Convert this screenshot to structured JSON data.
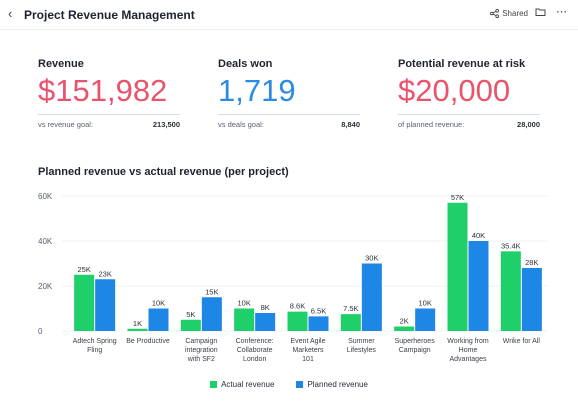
{
  "header": {
    "title": "Project Revenue Management",
    "back_icon": "chevron-left-icon",
    "shared_label": "Shared",
    "share_icon": "share-icon",
    "folder_icon": "folder-icon",
    "more_icon": "more-icon"
  },
  "kpis": [
    {
      "title": "Revenue",
      "value": "$151,982",
      "foot_label": "vs revenue goal:",
      "foot_value": "213,500",
      "color": "#e8546b"
    },
    {
      "title": "Deals won",
      "value": "1,719",
      "foot_label": "vs deals goal:",
      "foot_value": "8,840",
      "color": "#2a8be3"
    },
    {
      "title": "Potential revenue at risk",
      "value": "$20,000",
      "foot_label": "of planned revenue:",
      "foot_value": "28,000",
      "color": "#e8546b"
    }
  ],
  "chart_title": "Planned revenue vs actual revenue (per project)",
  "chart_data": {
    "type": "bar",
    "title": "Planned revenue vs actual revenue (per project)",
    "categories": [
      [
        "Adtech Spring",
        "Fling"
      ],
      [
        "Be Productive"
      ],
      [
        "Campaign",
        "integration",
        "with SF2"
      ],
      [
        "Conference:",
        "Collaborate",
        "London"
      ],
      [
        "Event Agile",
        "Marketers",
        "101"
      ],
      [
        "Summer",
        "Lifestyles"
      ],
      [
        "Superheroes",
        "Campaign"
      ],
      [
        "Working from",
        "Home",
        "Advantages"
      ],
      [
        "Wrike for All"
      ]
    ],
    "series": [
      {
        "name": "Actual revenue",
        "color": "#1ecf6a",
        "values": [
          25000,
          1000,
          5000,
          10000,
          8600,
          7500,
          2000,
          57000,
          35400
        ],
        "labels": [
          "25K",
          "1K",
          "5K",
          "10K",
          "8.6K",
          "7.5K",
          "2K",
          "57K",
          "35.4K"
        ]
      },
      {
        "name": "Planned revenue",
        "color": "#1e86e4",
        "values": [
          23000,
          10000,
          15000,
          8000,
          6500,
          30000,
          10000,
          40000,
          28000
        ],
        "labels": [
          "23K",
          "10K",
          "15K",
          "8K",
          "6.5K",
          "30K",
          "10K",
          "40K",
          "28K"
        ]
      }
    ],
    "y_ticks": [
      "0",
      "20K",
      "40K",
      "60K"
    ],
    "y_tick_values": [
      0,
      20000,
      40000,
      60000
    ],
    "ylim": [
      0,
      60000
    ],
    "grid": true,
    "legend": "bottom-center"
  }
}
